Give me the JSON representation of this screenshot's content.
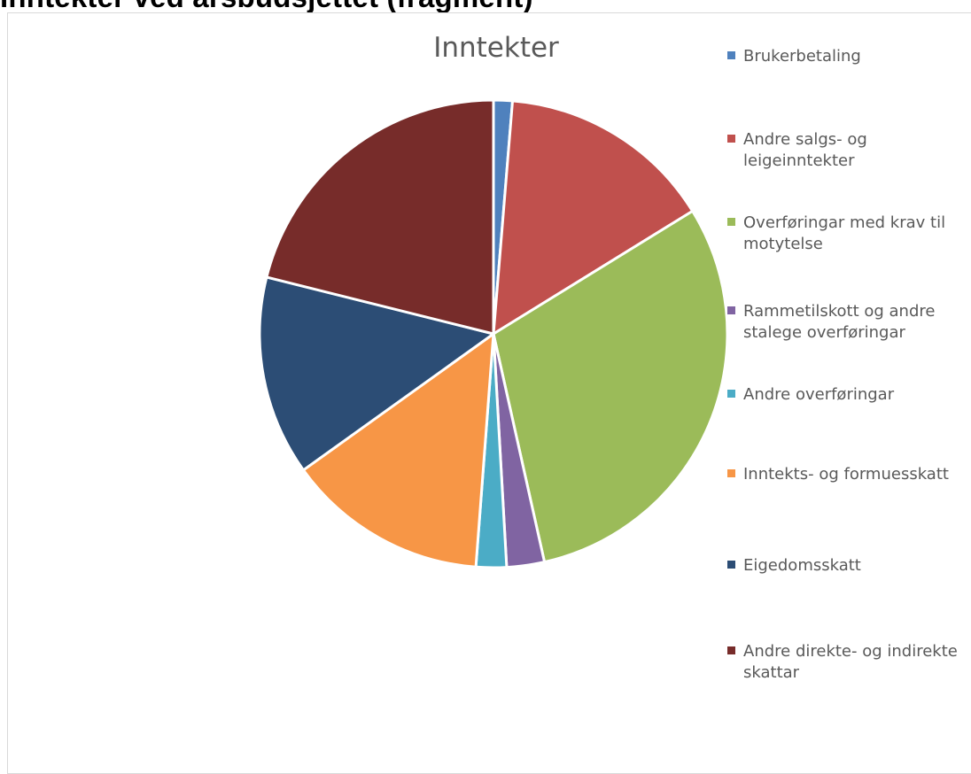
{
  "page": {
    "heading": "Inntekter ved årsbudsjettet (fragment)"
  },
  "chart_data": {
    "type": "pie",
    "title": "Inntekter",
    "legend_position": "right",
    "start_angle_deg": 0,
    "direction": "clockwise",
    "slices": [
      {
        "label": "Brukerbetaling",
        "value": 1.3,
        "color": "#4F81BD"
      },
      {
        "label": "Andre salgs- og\nleigeinntekter",
        "value": 14.9,
        "color": "#C0504D"
      },
      {
        "label": "Overføringar med krav til\nmotytelse",
        "value": 30.3,
        "color": "#9BBB59"
      },
      {
        "label": "Rammetilskott og andre\nstalege overføringar",
        "value": 2.6,
        "color": "#8064A2"
      },
      {
        "label": "Andre overføringar",
        "value": 2.1,
        "color": "#4BACC6"
      },
      {
        "label": "Inntekts- og formuesskatt",
        "value": 13.9,
        "color": "#F79646"
      },
      {
        "label": "Eigedomsskatt",
        "value": 13.8,
        "color": "#2C4D75"
      },
      {
        "label": "Andre direkte- og indirekte\nskattar",
        "value": 21.1,
        "color": "#772C2A"
      }
    ]
  }
}
